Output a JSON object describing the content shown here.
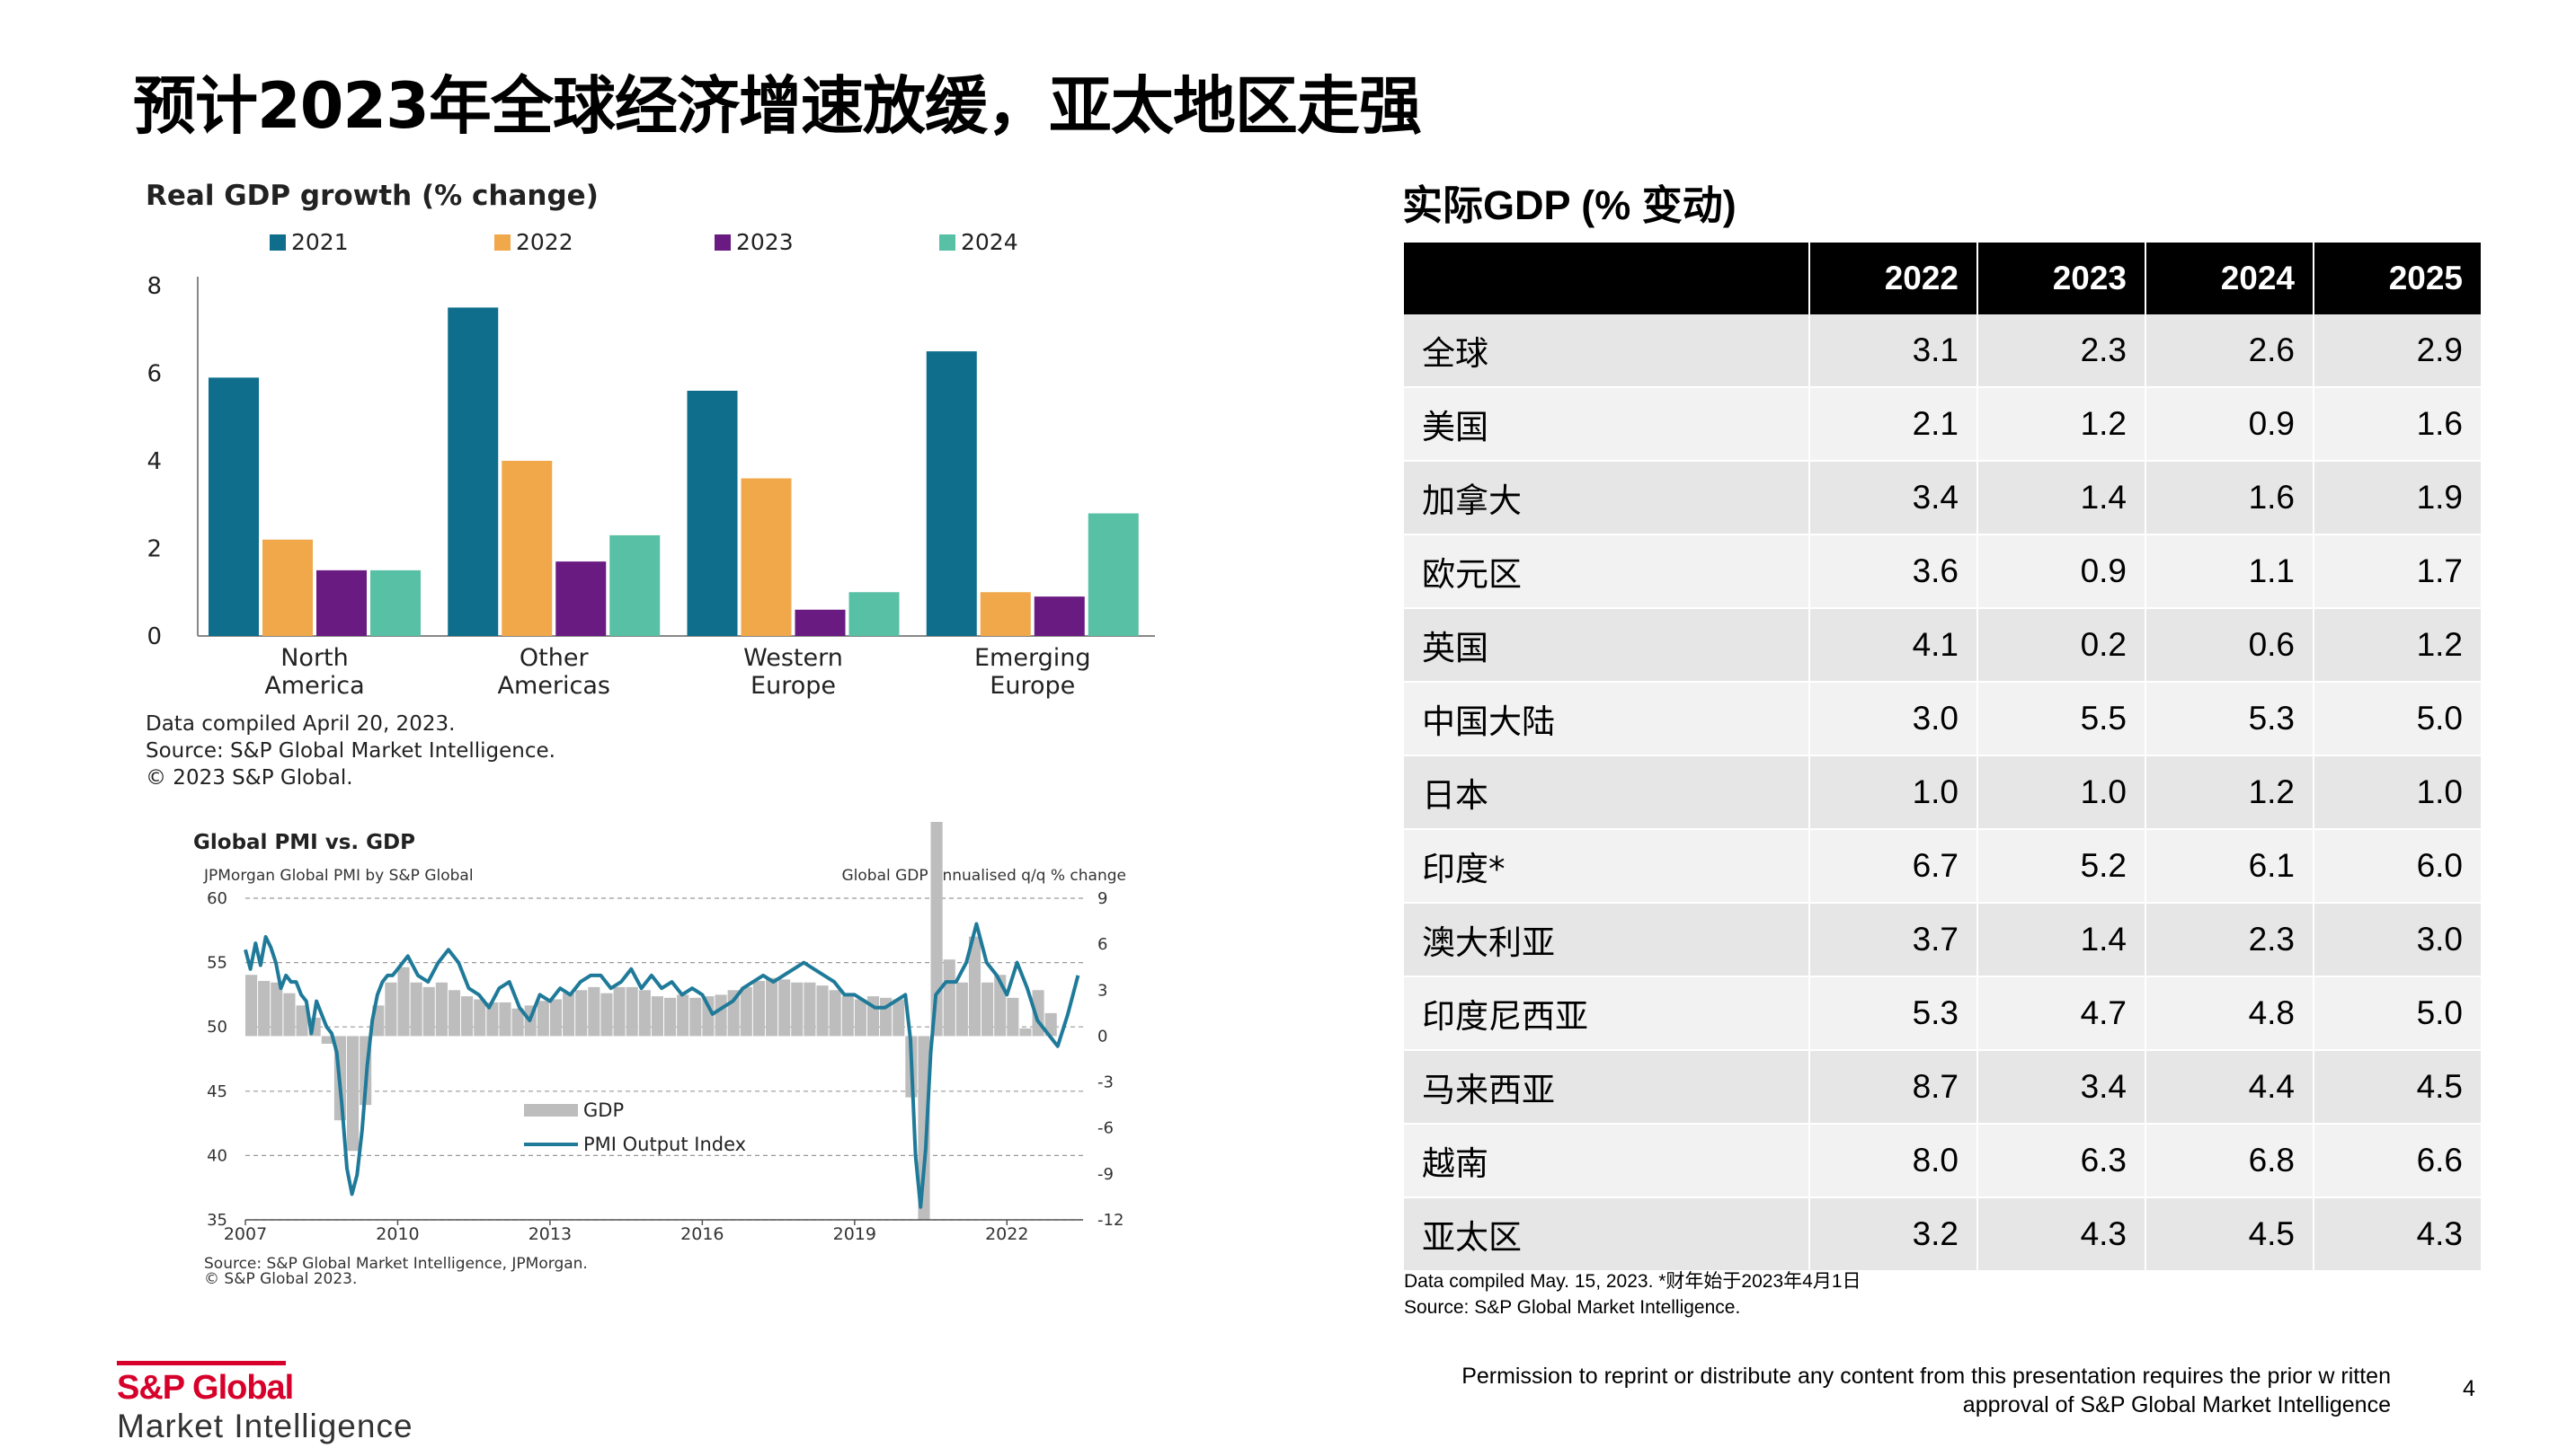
{
  "page": {
    "title": "预计2023年全球经济增速放缓，亚太地区走强",
    "page_number": "4"
  },
  "footer": {
    "logo_top": "S&P Global",
    "logo_bottom": "Market Intelligence",
    "permission_line1": "Permission  to reprint or distribute any content from this presentation requires the prior w ritten",
    "permission_line2": "approval of S&P Global  Market  Intelligence"
  },
  "colors": {
    "s2021": "#0e6e8c",
    "s2022": "#f0a84b",
    "s2023": "#6a1b82",
    "s2024": "#58c0a4",
    "gdp_bar": "#bdbdbd",
    "pmi_line": "#1f7a99",
    "brand_red": "#d6002a"
  },
  "chart_data": [
    {
      "type": "bar",
      "title": "Real GDP growth (% change)",
      "categories": [
        [
          "North",
          "America"
        ],
        [
          "Other",
          "Americas"
        ],
        [
          "Western",
          "Europe"
        ],
        [
          "Emerging",
          "Europe"
        ]
      ],
      "series": [
        {
          "name": "2021",
          "values": [
            5.9,
            7.5,
            5.6,
            6.5
          ]
        },
        {
          "name": "2022",
          "values": [
            2.2,
            4.0,
            3.6,
            1.0
          ]
        },
        {
          "name": "2023",
          "values": [
            1.5,
            1.7,
            0.6,
            0.9
          ]
        },
        {
          "name": "2024",
          "values": [
            1.5,
            2.3,
            1.0,
            2.8
          ]
        }
      ],
      "ylim": [
        0,
        8
      ],
      "yticks": [
        "0",
        "2",
        "4",
        "6",
        "8"
      ],
      "legend_position": "top",
      "notes": [
        "Data compiled April 20, 2023.",
        "Source: S&P Global Market Intelligence.",
        "© 2023 S&P Global."
      ]
    },
    {
      "type": "line",
      "title": "Global PMI vs. GDP",
      "left_label": "JPMorgan Global PMI by S&P Global",
      "right_label": "Global GDP annualised q/q % change",
      "ylim_left": [
        35,
        60
      ],
      "ylim_right": [
        -12,
        9
      ],
      "yticks_left": [
        "60",
        "55",
        "50",
        "45",
        "40",
        "35"
      ],
      "yticks_right": [
        "9",
        "6",
        "3",
        "0",
        "-3",
        "-6",
        "-9",
        "-12"
      ],
      "xticks": [
        "2007",
        "2010",
        "2013",
        "2016",
        "2019",
        "2022"
      ],
      "xlim": [
        2007,
        2023.5
      ],
      "legend": [
        "GDP",
        "PMI Output Index"
      ],
      "gdp_series": {
        "x": [
          2007.0,
          2007.25,
          2007.5,
          2007.75,
          2008.0,
          2008.25,
          2008.5,
          2008.75,
          2009.0,
          2009.25,
          2009.5,
          2009.75,
          2010.0,
          2010.25,
          2010.5,
          2010.75,
          2011.0,
          2011.25,
          2011.5,
          2011.75,
          2012.0,
          2012.25,
          2012.5,
          2012.75,
          2013.0,
          2013.25,
          2013.5,
          2013.75,
          2014.0,
          2014.25,
          2014.5,
          2014.75,
          2015.0,
          2015.25,
          2015.5,
          2015.75,
          2016.0,
          2016.25,
          2016.5,
          2016.75,
          2017.0,
          2017.25,
          2017.5,
          2017.75,
          2018.0,
          2018.25,
          2018.5,
          2018.75,
          2019.0,
          2019.25,
          2019.5,
          2019.75,
          2020.0,
          2020.25,
          2020.5,
          2020.75,
          2021.0,
          2021.25,
          2021.5,
          2021.75,
          2022.0,
          2022.25,
          2022.5,
          2022.75
        ],
        "values": [
          4.0,
          3.6,
          3.5,
          2.8,
          2.0,
          1.2,
          -0.5,
          -5.5,
          -7.5,
          -4.5,
          2.0,
          3.5,
          4.5,
          3.5,
          3.2,
          3.5,
          3.0,
          2.6,
          2.4,
          2.2,
          2.2,
          1.8,
          2.0,
          2.3,
          2.4,
          2.8,
          3.0,
          3.2,
          2.8,
          3.2,
          3.2,
          3.0,
          2.6,
          2.5,
          2.7,
          2.5,
          2.6,
          2.7,
          3.0,
          3.2,
          3.6,
          3.8,
          3.7,
          3.5,
          3.5,
          3.3,
          3.0,
          2.6,
          2.4,
          2.6,
          2.5,
          2.4,
          -4.0,
          -12.0,
          16.0,
          5.0,
          3.5,
          6.5,
          3.5,
          4.0,
          2.5,
          0.5,
          3.0,
          1.5
        ]
      },
      "pmi_series": {
        "x": [
          2007.0,
          2007.1,
          2007.2,
          2007.3,
          2007.4,
          2007.5,
          2007.6,
          2007.7,
          2007.8,
          2007.9,
          2008.0,
          2008.1,
          2008.2,
          2008.3,
          2008.4,
          2008.5,
          2008.6,
          2008.7,
          2008.8,
          2008.9,
          2009.0,
          2009.1,
          2009.2,
          2009.3,
          2009.4,
          2009.5,
          2009.6,
          2009.7,
          2009.8,
          2009.9,
          2010.0,
          2010.2,
          2010.4,
          2010.6,
          2010.8,
          2011.0,
          2011.2,
          2011.4,
          2011.6,
          2011.8,
          2012.0,
          2012.2,
          2012.4,
          2012.6,
          2012.8,
          2013.0,
          2013.2,
          2013.4,
          2013.6,
          2013.8,
          2014.0,
          2014.2,
          2014.4,
          2014.6,
          2014.8,
          2015.0,
          2015.2,
          2015.4,
          2015.6,
          2015.8,
          2016.0,
          2016.2,
          2016.4,
          2016.6,
          2016.8,
          2017.0,
          2017.2,
          2017.4,
          2017.6,
          2017.8,
          2018.0,
          2018.2,
          2018.4,
          2018.6,
          2018.8,
          2019.0,
          2019.2,
          2019.4,
          2019.6,
          2019.8,
          2020.0,
          2020.1,
          2020.2,
          2020.3,
          2020.4,
          2020.5,
          2020.6,
          2020.8,
          2021.0,
          2021.2,
          2021.4,
          2021.6,
          2021.8,
          2022.0,
          2022.2,
          2022.4,
          2022.6,
          2022.8,
          2023.0,
          2023.2,
          2023.4
        ],
        "values": [
          56.0,
          54.5,
          56.5,
          54.8,
          57.0,
          56.2,
          55.0,
          53.0,
          54.0,
          53.5,
          53.5,
          52.5,
          52.0,
          49.5,
          52.0,
          51.0,
          50.0,
          49.5,
          48.0,
          44.0,
          39.0,
          37.0,
          38.5,
          42.0,
          47.0,
          50.5,
          52.5,
          53.5,
          54.0,
          54.0,
          54.5,
          55.5,
          54.0,
          53.5,
          55.0,
          56.0,
          55.0,
          53.0,
          52.5,
          51.5,
          53.0,
          53.5,
          51.5,
          50.5,
          52.5,
          52.0,
          53.0,
          52.5,
          53.5,
          54.0,
          54.0,
          53.0,
          53.5,
          54.5,
          53.0,
          54.0,
          53.0,
          53.5,
          52.5,
          53.0,
          52.5,
          51.0,
          51.5,
          52.0,
          53.0,
          53.5,
          54.0,
          53.5,
          54.0,
          54.5,
          55.0,
          54.5,
          54.0,
          53.5,
          52.5,
          52.5,
          52.0,
          51.5,
          51.5,
          52.0,
          52.5,
          49.0,
          40.0,
          36.0,
          40.5,
          48.0,
          52.5,
          53.5,
          53.5,
          55.0,
          58.0,
          55.0,
          54.0,
          52.5,
          55.0,
          53.0,
          50.5,
          49.5,
          48.5,
          51.0,
          54.0
        ]
      },
      "notes": [
        "Source: S&P Global Market Intelligence, JPMorgan.",
        "© S&P Global 2023."
      ]
    },
    {
      "type": "table",
      "title": "实际GDP (% 变动)",
      "columns": [
        "",
        "2022",
        "2023",
        "2024",
        "2025"
      ],
      "rows": [
        [
          "全球",
          "3.1",
          "2.3",
          "2.6",
          "2.9"
        ],
        [
          "美国",
          "2.1",
          "1.2",
          "0.9",
          "1.6"
        ],
        [
          "加拿大",
          "3.4",
          "1.4",
          "1.6",
          "1.9"
        ],
        [
          "欧元区",
          "3.6",
          "0.9",
          "1.1",
          "1.7"
        ],
        [
          "英国",
          "4.1",
          "0.2",
          "0.6",
          "1.2"
        ],
        [
          "中国大陆",
          "3.0",
          "5.5",
          "5.3",
          "5.0"
        ],
        [
          "日本",
          "1.0",
          "1.0",
          "1.2",
          "1.0"
        ],
        [
          "印度*",
          "6.7",
          "5.2",
          "6.1",
          "6.0"
        ],
        [
          "澳大利亚",
          "3.7",
          "1.4",
          "2.3",
          "3.0"
        ],
        [
          "印度尼西亚",
          "5.3",
          "4.7",
          "4.8",
          "5.0"
        ],
        [
          "马来西亚",
          "8.7",
          "3.4",
          "4.4",
          "4.5"
        ],
        [
          "越南",
          "8.0",
          "6.3",
          "6.8",
          "6.6"
        ],
        [
          "亚太区",
          "3.2",
          "4.3",
          "4.5",
          "4.3"
        ]
      ],
      "notes": [
        "Data compiled May. 15, 2023. *财年始于2023年4月1日",
        "Source: S&P Global Market Intelligence."
      ]
    }
  ]
}
